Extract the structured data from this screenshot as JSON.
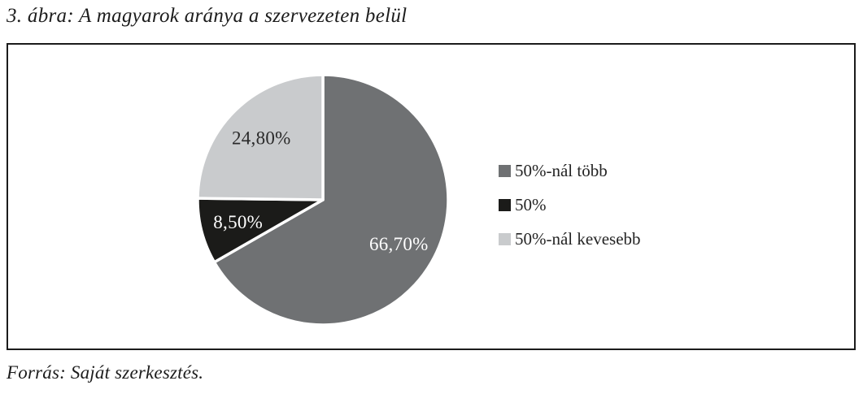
{
  "title": "3. ábra: A magyarok aránya a szervezeten belül",
  "source_note": "Forrás: Saját szerkesztés.",
  "colors": {
    "frame_border": "#1b1b1b",
    "text": "#1c1c1c",
    "slice_separator": "#ffffff"
  },
  "chart_data": {
    "type": "pie",
    "title": "A magyarok aránya a szervezeten belül",
    "legend_position": "right",
    "start_angle_deg": 0,
    "direction": "clockwise",
    "series": [
      {
        "label": "50%-nál több",
        "value": 66.7,
        "display": "66,70%",
        "color": "#6f7173",
        "label_color": "#ffffff"
      },
      {
        "label": "50%",
        "value": 8.5,
        "display": "8,50%",
        "color": "#1b1b19",
        "label_color": "#ffffff"
      },
      {
        "label": "50%-nál kevesebb",
        "value": 24.8,
        "display": "24,80%",
        "color": "#c9cbcd",
        "label_color": "#2a2a2a"
      }
    ]
  }
}
